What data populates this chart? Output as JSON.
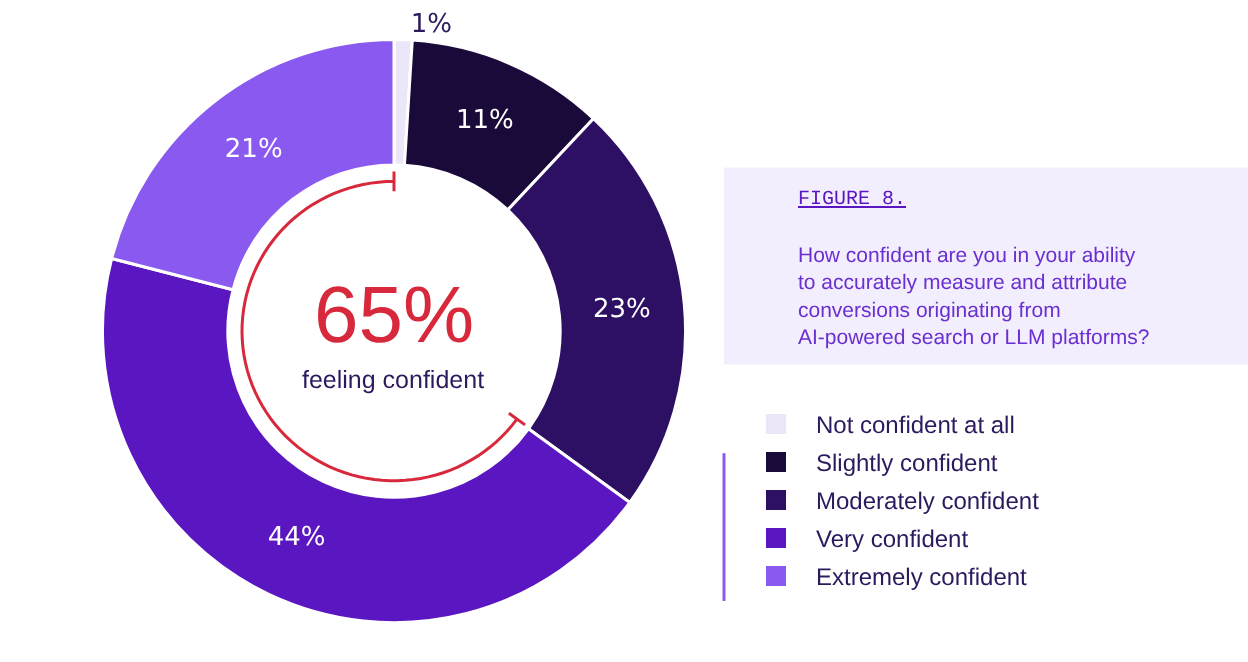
{
  "chart_data": {
    "type": "donut",
    "title": "FIGURE 8.",
    "subtitle": "How confident are you in your ability to accurately measure and attribute conversions originating from AI-powered search or LLM platforms?",
    "categories": [
      "Not confident at all",
      "Slightly confident",
      "Moderately confident",
      "Very confident",
      "Extremely confident"
    ],
    "values": [
      1,
      11,
      23,
      44,
      21
    ],
    "colors": [
      "#ece6f9",
      "#1a0a3a",
      "#2d0f63",
      "#5a16c0",
      "#8a5af0"
    ],
    "value_labels": [
      "1%",
      "11%",
      "23%",
      "44%",
      "21%"
    ],
    "annotations": [
      "65%",
      "feeling confident"
    ],
    "legend": "bottom right"
  }
}
